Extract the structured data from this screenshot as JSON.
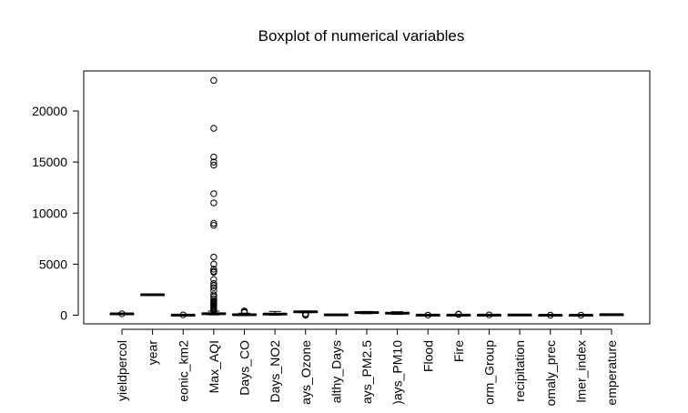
{
  "chart_data": {
    "type": "boxplot",
    "title": "Boxplot of numerical variables",
    "xlabel": "",
    "ylabel": "",
    "ylim": [
      -1000,
      24000
    ],
    "y_ticks": [
      0,
      5000,
      10000,
      15000,
      20000
    ],
    "y_tick_labels": [
      "0",
      "5000",
      "10000",
      "15000",
      "20000"
    ],
    "categories": [
      "yieldpercol",
      "year",
      "eonic_km2",
      "Max_AQI",
      "Days_CO",
      "Days_NO2",
      "ays_Ozone",
      "althy_Days",
      "ays_PM2.5",
      ")ays_PM10",
      "Flood",
      "Fire",
      "orm_Group",
      "recipitation",
      "omaly_prec",
      "lmer_index",
      "emperature"
    ],
    "boxes": [
      {
        "min": 60,
        "q1": 110,
        "median": 130,
        "q3": 150,
        "max": 200,
        "outliers": [
          140
        ]
      },
      {
        "min": 1960,
        "q1": 1970,
        "median": 2000,
        "q3": 2010,
        "max": 2030,
        "outliers": []
      },
      {
        "min": 0,
        "q1": 5,
        "median": 10,
        "q3": 20,
        "max": 40,
        "outliers": [
          30
        ]
      },
      {
        "min": 30,
        "q1": 100,
        "median": 150,
        "q3": 220,
        "max": 400,
        "outliers": [
          23000,
          18300,
          15500,
          15000,
          14700,
          11900,
          11000,
          9000,
          8800,
          5700,
          5000,
          4500,
          4300,
          4200,
          3500,
          3100,
          2900,
          2700,
          2400,
          2000,
          1800,
          1600,
          1400,
          1300,
          1200,
          1100,
          1000,
          900,
          800,
          700,
          600,
          500,
          450
        ]
      },
      {
        "min": 0,
        "q1": 20,
        "median": 50,
        "q3": 100,
        "max": 200,
        "outliers": [
          420,
          330,
          260
        ]
      },
      {
        "min": 0,
        "q1": 50,
        "median": 110,
        "q3": 170,
        "max": 370,
        "outliers": []
      },
      {
        "min": 250,
        "q1": 300,
        "median": 330,
        "q3": 360,
        "max": 390,
        "outliers": [
          150,
          90,
          40,
          0
        ]
      },
      {
        "min": 0,
        "q1": 10,
        "median": 30,
        "q3": 60,
        "max": 90,
        "outliers": []
      },
      {
        "min": 150,
        "q1": 200,
        "median": 260,
        "q3": 310,
        "max": 365,
        "outliers": []
      },
      {
        "min": 80,
        "q1": 140,
        "median": 200,
        "q3": 260,
        "max": 340,
        "outliers": []
      },
      {
        "min": 0,
        "q1": 5,
        "median": 10,
        "q3": 20,
        "max": 30,
        "outliers": [
          10
        ]
      },
      {
        "min": 0,
        "q1": 5,
        "median": 15,
        "q3": 30,
        "max": 60,
        "outliers": [
          120,
          80
        ]
      },
      {
        "min": 0,
        "q1": 5,
        "median": 10,
        "q3": 20,
        "max": 40,
        "outliers": [
          30
        ]
      },
      {
        "min": 0,
        "q1": 10,
        "median": 20,
        "q3": 35,
        "max": 60,
        "outliers": []
      },
      {
        "min": -20,
        "q1": -5,
        "median": 0,
        "q3": 5,
        "max": 20,
        "outliers": [
          0
        ]
      },
      {
        "min": -5,
        "q1": -2,
        "median": 0,
        "q3": 2,
        "max": 5,
        "outliers": [
          0
        ]
      },
      {
        "min": 40,
        "q1": 50,
        "median": 55,
        "q3": 60,
        "max": 70,
        "outliers": []
      }
    ],
    "grid": false,
    "legend": "none"
  }
}
